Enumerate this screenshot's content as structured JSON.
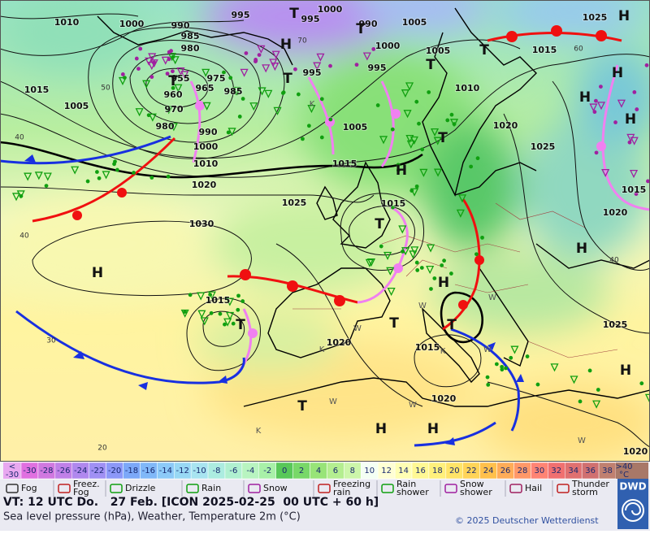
{
  "map": {
    "pressure_labels": [
      1010,
      1000,
      995,
      1000,
      995,
      990,
      1005,
      1025,
      990,
      985,
      980,
      1000,
      1005,
      1015,
      995,
      995,
      975,
      955,
      965,
      985,
      960,
      970,
      980,
      990,
      1000,
      1010,
      1020,
      1015,
      1005,
      1010,
      1005,
      1020,
      1025,
      1015,
      1025,
      1015,
      1030,
      1015,
      1020,
      1015,
      1020,
      1015,
      1025,
      1020,
      1020
    ],
    "isotherm_labels": [
      40,
      40,
      40,
      50,
      60,
      30,
      20,
      70
    ],
    "centers": [
      "H",
      "T",
      "T",
      "H",
      "T",
      "H",
      "H",
      "T",
      "T",
      "T",
      "H",
      "T",
      "H",
      "H",
      "H",
      "T",
      "T",
      "T",
      "H",
      "H",
      "H",
      "T",
      "H",
      "T"
    ],
    "station_letters": [
      "K",
      "K",
      "W",
      "W",
      "W",
      "W",
      "K",
      "W",
      "W",
      "K",
      "W"
    ]
  },
  "colorbar": {
    "below": [
      "<",
      "-30"
    ],
    "below_color": "#e8a8f0",
    "values": [
      -30,
      -28,
      -26,
      -24,
      -22,
      -20,
      -18,
      -16,
      -14,
      -12,
      -10,
      -8,
      -6,
      -4,
      -2,
      0,
      2,
      4,
      6,
      8,
      10,
      12,
      14,
      16,
      18,
      20,
      22,
      24,
      26,
      28,
      30,
      32,
      34,
      36,
      38
    ],
    "colors": [
      "#e070e0",
      "#d078e0",
      "#c080e8",
      "#b088ee",
      "#a090f4",
      "#8c98f8",
      "#7ca8f8",
      "#80b8f8",
      "#8ccaf8",
      "#98d8f4",
      "#a8e4f0",
      "#acece0",
      "#b0f0d0",
      "#b8f4c0",
      "#a8f0a8",
      "#58c858",
      "#78d868",
      "#98e478",
      "#b4ee90",
      "#ccf6aa",
      "#f4fff4",
      "#ffffd4",
      "#ffffb4",
      "#fff894",
      "#fff07c",
      "#ffe468",
      "#ffd458",
      "#ffc04c",
      "#ffac58",
      "#ff9868",
      "#ff8474",
      "#f07070",
      "#e07070",
      "#d07070",
      "#c08070"
    ],
    "above": [
      ">40",
      "°C"
    ],
    "above_color": "#a87868"
  },
  "legend": {
    "items": [
      [
        "Fog"
      ],
      [
        "Freez.",
        "Fog"
      ],
      [
        "Drizzle"
      ],
      [
        "Rain"
      ],
      [
        "Snow"
      ],
      [
        "Freezing",
        "rain"
      ],
      [
        "Rain",
        "shower"
      ],
      [
        "Snow",
        "shower"
      ],
      [
        "Hail"
      ],
      [
        "Thunder",
        "storm"
      ]
    ]
  },
  "footer": {
    "valid_time": "VT: 12 UTC Do.   27 Feb. [ICON 2025-02-25  00 UTC + 60 h]",
    "description": "Sea level pressure (hPa), Weather, Temperature 2m (°C)",
    "copyright": "© 2025 Deutscher Wetterdienst",
    "logo": "DWD"
  }
}
